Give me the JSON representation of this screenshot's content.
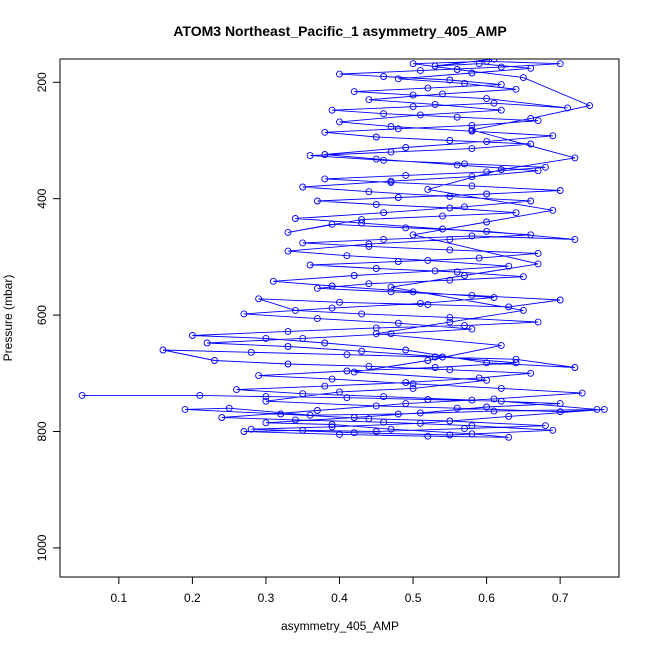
{
  "chart_data": {
    "type": "scatter",
    "title": "ATOM3 Northeast_Pacific_1 asymmetry_405_AMP",
    "xlabel": "asymmetry_405_AMP",
    "ylabel": "Pressure (mbar)",
    "xlim": [
      0.02,
      0.78
    ],
    "ylim": [
      1050,
      160
    ],
    "y_reversed": true,
    "xticks": [
      0.1,
      0.2,
      0.3,
      0.4,
      0.5,
      0.6,
      0.7
    ],
    "xtick_labels": [
      "0.1",
      "0.2",
      "0.3",
      "0.4",
      "0.5",
      "0.6",
      "0.7"
    ],
    "yticks": [
      200,
      400,
      600,
      800,
      1000
    ],
    "ytick_labels": [
      "200",
      "400",
      "600",
      "800",
      "1000"
    ],
    "grid": false,
    "legend": "none",
    "marker": "open-circle",
    "connected": true,
    "series_color": "#0000ff",
    "series": [
      {
        "name": "",
        "points": [
          [
            0.05,
            738
          ],
          [
            0.21,
            738
          ],
          [
            0.3,
            740
          ],
          [
            0.41,
            742
          ],
          [
            0.52,
            745
          ],
          [
            0.62,
            748
          ],
          [
            0.75,
            762
          ],
          [
            0.61,
            765
          ],
          [
            0.48,
            770
          ],
          [
            0.36,
            772
          ],
          [
            0.25,
            760
          ],
          [
            0.19,
            762
          ],
          [
            0.32,
            770
          ],
          [
            0.44,
            778
          ],
          [
            0.55,
            782
          ],
          [
            0.68,
            790
          ],
          [
            0.57,
            795
          ],
          [
            0.45,
            800
          ],
          [
            0.35,
            798
          ],
          [
            0.27,
            800
          ],
          [
            0.4,
            805
          ],
          [
            0.52,
            808
          ],
          [
            0.63,
            810
          ],
          [
            0.58,
            804
          ],
          [
            0.47,
            796
          ],
          [
            0.39,
            788
          ],
          [
            0.3,
            785
          ],
          [
            0.42,
            776
          ],
          [
            0.51,
            768
          ],
          [
            0.6,
            758
          ],
          [
            0.7,
            752
          ],
          [
            0.58,
            746
          ],
          [
            0.46,
            740
          ],
          [
            0.35,
            735
          ],
          [
            0.26,
            728
          ],
          [
            0.38,
            722
          ],
          [
            0.49,
            716
          ],
          [
            0.59,
            708
          ],
          [
            0.66,
            700
          ],
          [
            0.55,
            694
          ],
          [
            0.44,
            688
          ],
          [
            0.33,
            684
          ],
          [
            0.23,
            678
          ],
          [
            0.16,
            660
          ],
          [
            0.28,
            664
          ],
          [
            0.41,
            668
          ],
          [
            0.53,
            672
          ],
          [
            0.64,
            676
          ],
          [
            0.72,
            690
          ],
          [
            0.6,
            682
          ],
          [
            0.49,
            660
          ],
          [
            0.38,
            648
          ],
          [
            0.3,
            640
          ],
          [
            0.2,
            635
          ],
          [
            0.33,
            628
          ],
          [
            0.45,
            622
          ],
          [
            0.57,
            618
          ],
          [
            0.67,
            612
          ],
          [
            0.55,
            604
          ],
          [
            0.43,
            598
          ],
          [
            0.34,
            592
          ],
          [
            0.29,
            572
          ],
          [
            0.4,
            578
          ],
          [
            0.52,
            582
          ],
          [
            0.63,
            586
          ],
          [
            0.7,
            574
          ],
          [
            0.58,
            566
          ],
          [
            0.47,
            560
          ],
          [
            0.37,
            554
          ],
          [
            0.44,
            546
          ],
          [
            0.55,
            540
          ],
          [
            0.65,
            534
          ],
          [
            0.56,
            526
          ],
          [
            0.45,
            520
          ],
          [
            0.36,
            514
          ],
          [
            0.48,
            508
          ],
          [
            0.59,
            502
          ],
          [
            0.67,
            494
          ],
          [
            0.55,
            488
          ],
          [
            0.44,
            482
          ],
          [
            0.35,
            476
          ],
          [
            0.46,
            470
          ],
          [
            0.58,
            464
          ],
          [
            0.72,
            470
          ],
          [
            0.6,
            456
          ],
          [
            0.49,
            450
          ],
          [
            0.39,
            444
          ],
          [
            0.33,
            458
          ],
          [
            0.43,
            436
          ],
          [
            0.54,
            430
          ],
          [
            0.64,
            424
          ],
          [
            0.55,
            416
          ],
          [
            0.45,
            410
          ],
          [
            0.37,
            404
          ],
          [
            0.48,
            398
          ],
          [
            0.6,
            392
          ],
          [
            0.7,
            386
          ],
          [
            0.58,
            378
          ],
          [
            0.47,
            372
          ],
          [
            0.38,
            366
          ],
          [
            0.49,
            360
          ],
          [
            0.6,
            354
          ],
          [
            0.68,
            346
          ],
          [
            0.57,
            340
          ],
          [
            0.46,
            334
          ],
          [
            0.36,
            326
          ],
          [
            0.47,
            320
          ],
          [
            0.58,
            314
          ],
          [
            0.66,
            306
          ],
          [
            0.55,
            300
          ],
          [
            0.45,
            294
          ],
          [
            0.38,
            286
          ],
          [
            0.48,
            280
          ],
          [
            0.58,
            274
          ],
          [
            0.67,
            266
          ],
          [
            0.56,
            260
          ],
          [
            0.46,
            254
          ],
          [
            0.39,
            248
          ],
          [
            0.5,
            242
          ],
          [
            0.61,
            236
          ],
          [
            0.71,
            244
          ],
          [
            0.6,
            228
          ],
          [
            0.5,
            222
          ],
          [
            0.42,
            216
          ],
          [
            0.52,
            210
          ],
          [
            0.62,
            204
          ],
          [
            0.55,
            196
          ],
          [
            0.46,
            190
          ],
          [
            0.4,
            186
          ],
          [
            0.51,
            180
          ],
          [
            0.62,
            174
          ],
          [
            0.7,
            168
          ],
          [
            0.6,
            164
          ],
          [
            0.5,
            168
          ],
          [
            0.56,
            178
          ],
          [
            0.65,
            192
          ],
          [
            0.74,
            240
          ],
          [
            0.66,
            262
          ],
          [
            0.58,
            282
          ],
          [
            0.72,
            330
          ],
          [
            0.62,
            350
          ],
          [
            0.52,
            384
          ],
          [
            0.69,
            420
          ],
          [
            0.6,
            440
          ],
          [
            0.5,
            462
          ],
          [
            0.67,
            512
          ],
          [
            0.57,
            532
          ],
          [
            0.47,
            552
          ],
          [
            0.65,
            592
          ],
          [
            0.55,
            612
          ],
          [
            0.45,
            632
          ],
          [
            0.62,
            652
          ],
          [
            0.52,
            678
          ],
          [
            0.42,
            698
          ],
          [
            0.6,
            712
          ],
          [
            0.5,
            726
          ],
          [
            0.4,
            732
          ],
          [
            0.3,
            748
          ],
          [
            0.45,
            756
          ],
          [
            0.56,
            760
          ],
          [
            0.7,
            766
          ],
          [
            0.76,
            762
          ],
          [
            0.63,
            774
          ],
          [
            0.51,
            786
          ],
          [
            0.39,
            792
          ],
          [
            0.28,
            796
          ],
          [
            0.42,
            802
          ],
          [
            0.55,
            806
          ],
          [
            0.69,
            798
          ],
          [
            0.58,
            790
          ],
          [
            0.46,
            784
          ],
          [
            0.34,
            780
          ],
          [
            0.24,
            776
          ],
          [
            0.37,
            764
          ],
          [
            0.49,
            752
          ],
          [
            0.61,
            744
          ],
          [
            0.73,
            734
          ],
          [
            0.62,
            726
          ],
          [
            0.5,
            718
          ],
          [
            0.39,
            710
          ],
          [
            0.29,
            704
          ],
          [
            0.41,
            696
          ],
          [
            0.53,
            690
          ],
          [
            0.64,
            682
          ],
          [
            0.54,
            672
          ],
          [
            0.43,
            662
          ],
          [
            0.33,
            654
          ],
          [
            0.22,
            648
          ],
          [
            0.35,
            640
          ],
          [
            0.47,
            632
          ],
          [
            0.58,
            624
          ],
          [
            0.48,
            614
          ],
          [
            0.37,
            606
          ],
          [
            0.27,
            598
          ],
          [
            0.39,
            588
          ],
          [
            0.51,
            580
          ],
          [
            0.61,
            570
          ],
          [
            0.5,
            560
          ],
          [
            0.39,
            550
          ],
          [
            0.31,
            542
          ],
          [
            0.42,
            532
          ],
          [
            0.53,
            524
          ],
          [
            0.63,
            516
          ],
          [
            0.52,
            506
          ],
          [
            0.41,
            498
          ],
          [
            0.33,
            490
          ],
          [
            0.44,
            478
          ],
          [
            0.55,
            470
          ],
          [
            0.66,
            462
          ],
          [
            0.54,
            452
          ],
          [
            0.43,
            442
          ],
          [
            0.34,
            434
          ],
          [
            0.46,
            424
          ],
          [
            0.57,
            414
          ],
          [
            0.66,
            404
          ],
          [
            0.55,
            396
          ],
          [
            0.44,
            388
          ],
          [
            0.35,
            380
          ],
          [
            0.47,
            370
          ],
          [
            0.58,
            362
          ],
          [
            0.67,
            352
          ],
          [
            0.56,
            342
          ],
          [
            0.45,
            332
          ],
          [
            0.38,
            324
          ],
          [
            0.49,
            312
          ],
          [
            0.6,
            302
          ],
          [
            0.69,
            292
          ],
          [
            0.58,
            284
          ],
          [
            0.47,
            276
          ],
          [
            0.4,
            268
          ],
          [
            0.51,
            256
          ],
          [
            0.62,
            248
          ],
          [
            0.53,
            238
          ],
          [
            0.44,
            230
          ],
          [
            0.54,
            220
          ],
          [
            0.64,
            212
          ],
          [
            0.57,
            202
          ],
          [
            0.48,
            194
          ],
          [
            0.58,
            184
          ],
          [
            0.66,
            176
          ],
          [
            0.59,
            168
          ],
          [
            0.53,
            172
          ],
          [
            0.61,
            160
          ]
        ]
      }
    ]
  }
}
